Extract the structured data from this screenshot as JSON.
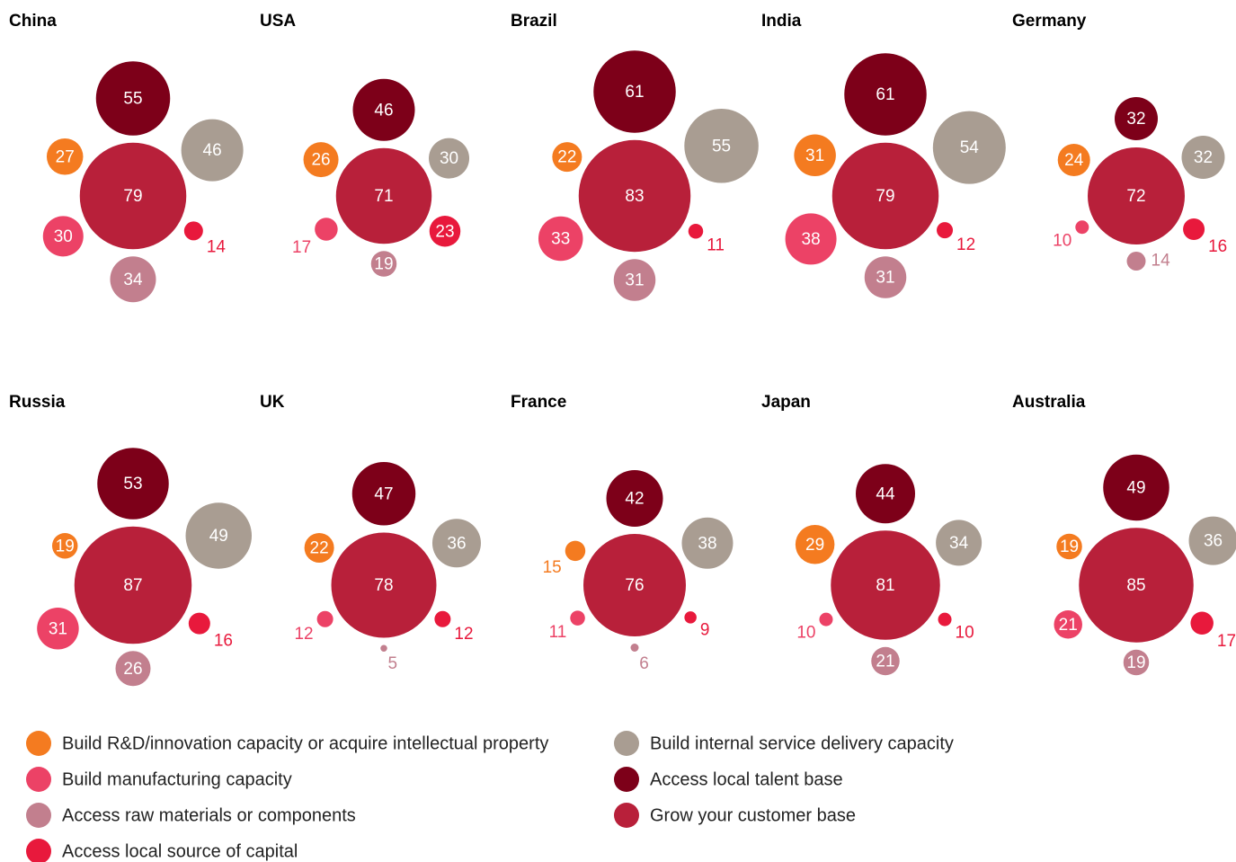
{
  "chart_data": {
    "type": "bubble-cluster",
    "categories": [
      "China",
      "USA",
      "Brazil",
      "India",
      "Germany",
      "Russia",
      "UK",
      "France",
      "Japan",
      "Australia"
    ],
    "series": [
      {
        "name": "Build R&D/innovation capacity or acquire intellectual property",
        "color": "#f47b20",
        "values": [
          27,
          26,
          22,
          31,
          24,
          19,
          22,
          15,
          29,
          19
        ]
      },
      {
        "name": "Build manufacturing capacity",
        "color": "#ec4266",
        "values": [
          30,
          17,
          33,
          38,
          10,
          31,
          12,
          11,
          10,
          21
        ]
      },
      {
        "name": "Access raw materials or components",
        "color": "#c27f8e",
        "values": [
          34,
          19,
          31,
          31,
          14,
          26,
          5,
          6,
          21,
          19
        ]
      },
      {
        "name": "Access local source of capital",
        "color": "#e8193c",
        "values": [
          14,
          23,
          11,
          12,
          16,
          16,
          12,
          9,
          10,
          17
        ]
      },
      {
        "name": "Build internal service delivery capacity",
        "color": "#a99d92",
        "values": [
          46,
          30,
          55,
          54,
          32,
          49,
          36,
          38,
          34,
          36
        ]
      },
      {
        "name": "Access local talent base",
        "color": "#7d0019",
        "values": [
          55,
          46,
          61,
          61,
          32,
          53,
          47,
          42,
          44,
          49
        ]
      },
      {
        "name": "Grow your customer base",
        "color": "#b8203a",
        "values": [
          79,
          71,
          83,
          79,
          72,
          87,
          78,
          76,
          81,
          85
        ]
      }
    ]
  }
}
